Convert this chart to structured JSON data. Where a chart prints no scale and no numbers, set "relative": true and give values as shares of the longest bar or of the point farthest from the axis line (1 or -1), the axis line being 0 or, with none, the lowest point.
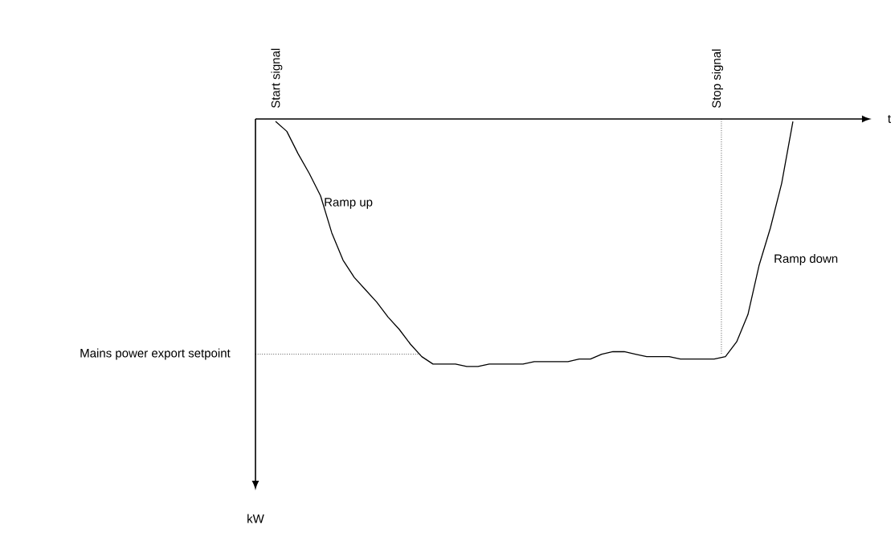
{
  "chart_data": {
    "type": "line",
    "relative": true,
    "categories": [
      null,
      null,
      null,
      null,
      null,
      null,
      null,
      null,
      null,
      null,
      null,
      null,
      null,
      null,
      null,
      null,
      null,
      null,
      null,
      null,
      null,
      null,
      null,
      null,
      null,
      null,
      null,
      null,
      null,
      null,
      null,
      null,
      null,
      null,
      null,
      null,
      null,
      null,
      null,
      null,
      null,
      null,
      null,
      null,
      null,
      null,
      null
    ],
    "series": [
      {
        "color": "#000000",
        "values": [
          -0.01,
          -0.05,
          -0.14,
          -0.22,
          -0.31,
          -0.46,
          -0.57,
          -0.64,
          -0.69,
          -0.74,
          -0.8,
          -0.85,
          -0.91,
          -0.96,
          -0.99,
          -0.99,
          -0.99,
          -1,
          -1,
          -0.99,
          -0.99,
          -0.99,
          -0.99,
          -0.98,
          -0.98,
          -0.98,
          -0.98,
          -0.97,
          -0.97,
          -0.95,
          -0.94,
          -0.94,
          -0.95,
          -0.96,
          -0.96,
          -0.96,
          -0.97,
          -0.97,
          -0.97,
          -0.97,
          -0.96,
          -0.9,
          -0.79,
          -0.59,
          -0.44,
          -0.26,
          -0.01
        ]
      }
    ],
    "ref_lines": [
      {
        "axis": "y",
        "value": -0.95,
        "label": "Mains power export setpoint",
        "line_style": "dotted"
      }
    ],
    "annotations": [
      "Start signal",
      "Ramp up",
      "Ramp down",
      "Stop signal",
      "t",
      "kW"
    ],
    "marker": "none",
    "line_style": "solid"
  }
}
